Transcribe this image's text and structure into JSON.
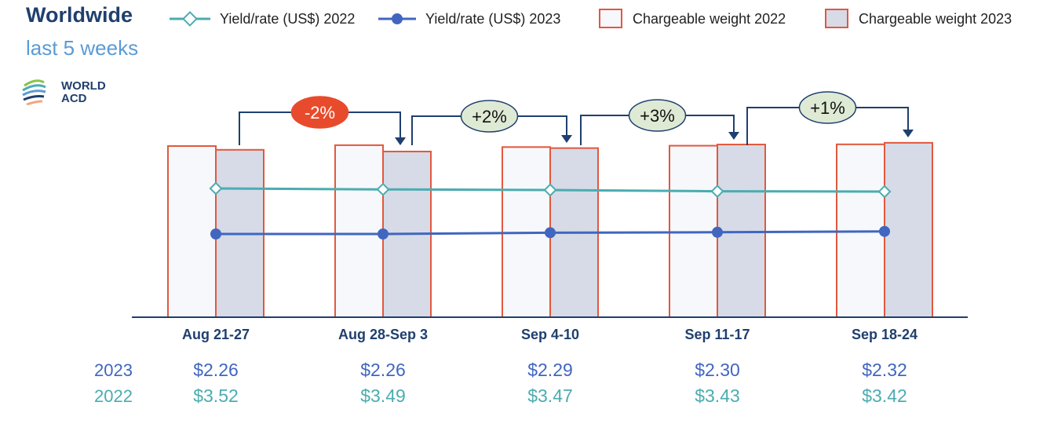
{
  "header": {
    "title": "Worldwide",
    "subtitle": "last 5 weeks",
    "logo_line1": "WORLD",
    "logo_line2": "ACD"
  },
  "legend": {
    "yield_2022": "Yield/rate (US$) 2022",
    "yield_2023": "Yield/rate (US$) 2023",
    "weight_2022": "Chargeable weight 2022",
    "weight_2023": "Chargeable weight 2023"
  },
  "colors": {
    "yield_2022": "#4bacb0",
    "yield_2023": "#4066c0",
    "bar_border": "#e2583e",
    "bar_2022_fill": "#f7f8fc",
    "bar_2023_fill": "#d6dbe7",
    "arrow": "#1f3f6e",
    "badge_neg": "#e84b2c",
    "badge_pos": "#dfead5"
  },
  "chart_data": {
    "type": "bar",
    "title": "Worldwide",
    "categories": [
      "Aug 21-27",
      "Aug 28-Sep 3",
      "Sep 4-10",
      "Sep 11-17",
      "Sep 18-24"
    ],
    "series": [
      {
        "name": "Chargeable weight 2022",
        "kind": "bar",
        "values": [
          100,
          100.5,
          99.4,
          100.2,
          101.0
        ]
      },
      {
        "name": "Chargeable weight 2023",
        "kind": "bar",
        "values": [
          97.8,
          96.8,
          98.8,
          100.9,
          101.9
        ]
      },
      {
        "name": "Yield/rate (US$) 2022",
        "kind": "line",
        "values": [
          3.52,
          3.49,
          3.47,
          3.43,
          3.42
        ]
      },
      {
        "name": "Yield/rate (US$) 2023",
        "kind": "line",
        "values": [
          2.26,
          2.26,
          2.29,
          2.3,
          2.32
        ]
      }
    ],
    "week_changes": [
      "-2%",
      "+2%",
      "+3%",
      "+1%"
    ],
    "yield_rows": {
      "label_2023": "2023",
      "label_2022": "2022",
      "values_2023": [
        "$2.26",
        "$2.26",
        "$2.29",
        "$2.30",
        "$2.32"
      ],
      "values_2022": [
        "$3.52",
        "$3.49",
        "$3.47",
        "$3.43",
        "$3.42"
      ]
    }
  }
}
